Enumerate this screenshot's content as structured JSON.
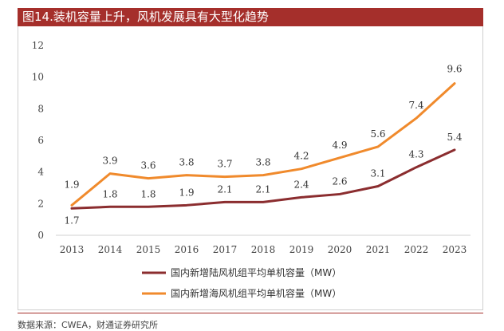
{
  "title": "图14.装机容量上升，风机发展具有大型化趋势",
  "source": "数据来源：CWEA，财通证券研究所",
  "colors": {
    "title_bg": "#a52f2b",
    "onshore": "#8b2d2f",
    "offshore": "#f08a2c",
    "axis": "#d0d0d0"
  },
  "chart_data": {
    "type": "line",
    "categories": [
      "2013",
      "2014",
      "2015",
      "2016",
      "2017",
      "2018",
      "2019",
      "2020",
      "2021",
      "2022",
      "2023"
    ],
    "ylim": [
      0,
      12
    ],
    "yticks": [
      "0",
      "2",
      "4",
      "6",
      "8",
      "10",
      "12"
    ],
    "grid": false,
    "legend": "bottom-center",
    "series": [
      {
        "name": "国内新增陆风机组平均单机容量（MW）",
        "color": "#8b2d2f",
        "values": [
          1.7,
          1.8,
          1.8,
          1.9,
          2.1,
          2.1,
          2.4,
          2.6,
          3.1,
          4.3,
          5.4
        ],
        "labels": [
          "1.7",
          "1.8",
          "1.8",
          "1.9",
          "2.1",
          "2.1",
          "2.4",
          "2.6",
          "3.1",
          "4.3",
          "5.4"
        ]
      },
      {
        "name": "国内新增海风机组平均单机容量（MW）",
        "color": "#f08a2c",
        "values": [
          1.9,
          3.9,
          3.6,
          3.8,
          3.7,
          3.8,
          4.2,
          4.9,
          5.6,
          7.4,
          9.6
        ],
        "labels": [
          "1.9",
          "3.9",
          "3.6",
          "3.8",
          "3.7",
          "3.8",
          "4.2",
          "4.9",
          "5.6",
          "7.4",
          "9.6"
        ]
      }
    ]
  }
}
